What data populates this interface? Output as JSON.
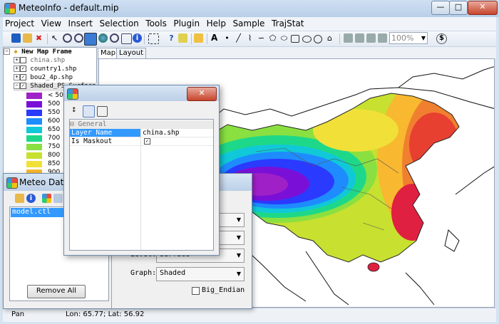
{
  "window": {
    "title": "MeteoInfo - default.mip",
    "min": "—",
    "max": "□",
    "close": "✕"
  },
  "menu": [
    "Project",
    "View",
    "Insert",
    "Selection",
    "Tools",
    "Plugin",
    "Help",
    "Sample",
    "TrajStat"
  ],
  "toolbar": {
    "zoom": "100%",
    "icons": [
      "add-layer",
      "open",
      "remove",
      "select",
      "zoom-in",
      "zoom-out",
      "pan",
      "full-extent",
      "zoom-layer",
      "zoom-selection",
      "identify",
      "select-features",
      "help",
      "measure",
      "edit",
      "text",
      "point",
      "line",
      "polyline",
      "curve",
      "polygon",
      "curve-polygon",
      "rectangle",
      "ellipse",
      "circle",
      "label",
      "polyline-edit",
      "layout-page",
      "layout-fit",
      "zoom-combo",
      "currency"
    ]
  },
  "legend": {
    "root": "New Map Frame",
    "layers": [
      {
        "name": "china.shp",
        "checked": false
      },
      {
        "name": "country1.shp",
        "checked": true
      },
      {
        "name": "bou2_4p.shp",
        "checked": true
      },
      {
        "name": "Shaded_PS_Surface_1",
        "checked": true
      }
    ],
    "items": [
      {
        "label": "< 500",
        "color": "#a020c8"
      },
      {
        "label": "500",
        "color": "#7a10d8"
      },
      {
        "label": "550",
        "color": "#2a3aff"
      },
      {
        "label": "600",
        "color": "#1e8cff"
      },
      {
        "label": "650",
        "color": "#10c8d8"
      },
      {
        "label": "700",
        "color": "#1ed88a"
      },
      {
        "label": "750",
        "color": "#8ae040"
      },
      {
        "label": "800",
        "color": "#c8e030"
      },
      {
        "label": "850",
        "color": "#f0e038"
      },
      {
        "label": "900",
        "color": "#f8b830"
      }
    ]
  },
  "tabs": {
    "map": "Map",
    "layout": "Layout"
  },
  "status": {
    "mode": "Pan",
    "coords": "Lon: 65.77; Lat: 56.92"
  },
  "meteo": {
    "title": "Meteo Data",
    "file": "model.ctl",
    "remove_all": "Remove All",
    "level_label": "Level:",
    "level_value": "Surface",
    "graph_label": "Graph:",
    "graph_value": "Shaded",
    "big_endian": "Big_Endian"
  },
  "props": {
    "section": "General",
    "rows": [
      {
        "key": "Layer Name",
        "value": "china.shp"
      },
      {
        "key": "Is Maskout",
        "value": "✓"
      }
    ],
    "close": "✕"
  }
}
